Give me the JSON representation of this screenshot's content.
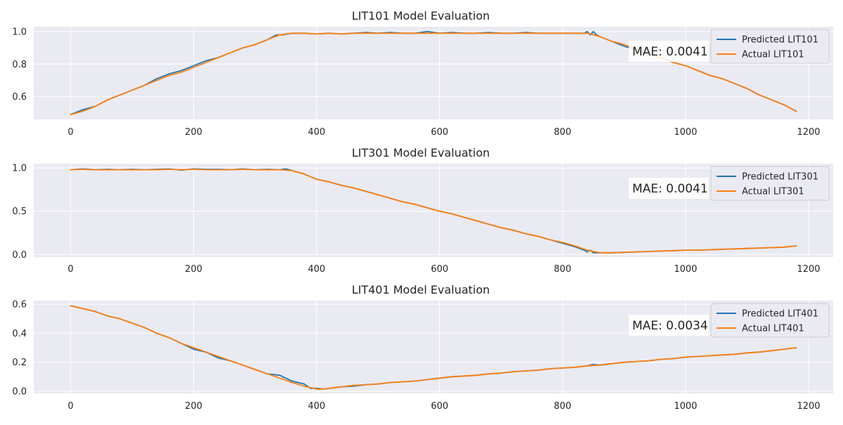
{
  "colors": {
    "panel_bg": "#EAEAF2",
    "grid": "#FFFFFF",
    "predicted": "#1F77B4",
    "actual": "#FF7F0E",
    "box_bg": "#FFFFFF"
  },
  "chart_data": [
    {
      "type": "line",
      "title": "LIT101 Model Evaluation",
      "xlabel": "",
      "ylabel": "",
      "xlim": [
        -60,
        1240
      ],
      "ylim": [
        0.46,
        1.03
      ],
      "xticks": [
        0,
        200,
        400,
        600,
        800,
        1000,
        1200
      ],
      "yticks": [
        0.6,
        0.8,
        1.0
      ],
      "grid": true,
      "legend_position": "top-right",
      "annotation": "MAE: 0.0041",
      "series": [
        {
          "name": "Predicted LIT101",
          "x": [
            0,
            20,
            40,
            60,
            80,
            100,
            120,
            140,
            160,
            180,
            200,
            220,
            240,
            260,
            280,
            300,
            320,
            335,
            345,
            360,
            380,
            400,
            420,
            440,
            460,
            480,
            500,
            520,
            540,
            560,
            580,
            600,
            620,
            640,
            660,
            680,
            700,
            720,
            740,
            760,
            780,
            800,
            820,
            835,
            840,
            845,
            850,
            855,
            860,
            880,
            900,
            920,
            940,
            960,
            980,
            1000,
            1020,
            1040,
            1060,
            1080,
            1100,
            1120,
            1140,
            1160,
            1180
          ],
          "y": [
            0.49,
            0.52,
            0.54,
            0.58,
            0.61,
            0.64,
            0.67,
            0.71,
            0.74,
            0.76,
            0.79,
            0.82,
            0.84,
            0.87,
            0.9,
            0.92,
            0.95,
            0.98,
            0.98,
            0.99,
            0.99,
            0.985,
            0.99,
            0.985,
            0.99,
            0.995,
            0.99,
            0.995,
            0.99,
            0.99,
            1.0,
            0.99,
            0.995,
            0.99,
            0.99,
            0.995,
            0.99,
            0.99,
            0.995,
            0.99,
            0.99,
            0.99,
            0.99,
            0.99,
            1.0,
            0.98,
            1.0,
            0.98,
            0.97,
            0.94,
            0.91,
            0.89,
            0.86,
            0.84,
            0.81,
            0.79,
            0.76,
            0.73,
            0.71,
            0.68,
            0.65,
            0.61,
            0.58,
            0.55,
            0.51
          ]
        },
        {
          "name": "Actual LIT101",
          "x": [
            0,
            20,
            40,
            60,
            80,
            100,
            120,
            140,
            160,
            180,
            200,
            220,
            240,
            260,
            280,
            300,
            320,
            340,
            360,
            380,
            400,
            420,
            440,
            460,
            480,
            500,
            520,
            540,
            560,
            580,
            600,
            620,
            640,
            660,
            680,
            700,
            720,
            740,
            760,
            780,
            800,
            820,
            840,
            860,
            880,
            900,
            920,
            940,
            960,
            980,
            1000,
            1020,
            1040,
            1060,
            1080,
            1100,
            1120,
            1140,
            1160,
            1180
          ],
          "y": [
            0.49,
            0.51,
            0.54,
            0.58,
            0.61,
            0.64,
            0.67,
            0.7,
            0.73,
            0.75,
            0.78,
            0.81,
            0.84,
            0.87,
            0.9,
            0.92,
            0.95,
            0.98,
            0.99,
            0.99,
            0.985,
            0.99,
            0.985,
            0.99,
            0.99,
            0.99,
            0.99,
            0.99,
            0.99,
            0.99,
            0.99,
            0.99,
            0.99,
            0.99,
            0.99,
            0.99,
            0.99,
            0.99,
            0.99,
            0.99,
            0.99,
            0.99,
            0.99,
            0.97,
            0.94,
            0.92,
            0.89,
            0.87,
            0.84,
            0.81,
            0.79,
            0.76,
            0.73,
            0.71,
            0.68,
            0.65,
            0.61,
            0.58,
            0.55,
            0.51
          ]
        }
      ]
    },
    {
      "type": "line",
      "title": "LIT301 Model Evaluation",
      "xlabel": "",
      "ylabel": "",
      "xlim": [
        -60,
        1240
      ],
      "ylim": [
        -0.03,
        1.05
      ],
      "xticks": [
        0,
        200,
        400,
        600,
        800,
        1000,
        1200
      ],
      "yticks": [
        0.0,
        0.5,
        1.0
      ],
      "grid": true,
      "legend_position": "top-right",
      "annotation": "MAE: 0.0041",
      "series": [
        {
          "name": "Predicted LIT301",
          "x": [
            0,
            20,
            40,
            60,
            80,
            100,
            120,
            140,
            160,
            180,
            200,
            220,
            240,
            260,
            280,
            300,
            320,
            340,
            350,
            360,
            380,
            400,
            420,
            440,
            460,
            480,
            500,
            520,
            540,
            560,
            580,
            600,
            620,
            640,
            660,
            680,
            700,
            720,
            740,
            760,
            780,
            800,
            820,
            835,
            840,
            845,
            850,
            860,
            880,
            900,
            920,
            940,
            960,
            980,
            1000,
            1020,
            1040,
            1060,
            1080,
            1100,
            1120,
            1140,
            1160,
            1180
          ],
          "y": [
            0.98,
            0.99,
            0.98,
            0.985,
            0.98,
            0.985,
            0.98,
            0.985,
            0.99,
            0.975,
            0.99,
            0.985,
            0.985,
            0.98,
            0.99,
            0.98,
            0.985,
            0.98,
            0.99,
            0.97,
            0.93,
            0.87,
            0.84,
            0.8,
            0.77,
            0.73,
            0.69,
            0.65,
            0.61,
            0.58,
            0.54,
            0.5,
            0.47,
            0.43,
            0.39,
            0.35,
            0.31,
            0.28,
            0.24,
            0.21,
            0.17,
            0.13,
            0.09,
            0.05,
            0.03,
            0.05,
            0.02,
            0.02,
            0.02,
            0.025,
            0.03,
            0.035,
            0.04,
            0.045,
            0.05,
            0.05,
            0.055,
            0.06,
            0.065,
            0.07,
            0.075,
            0.08,
            0.085,
            0.1
          ]
        },
        {
          "name": "Actual LIT301",
          "x": [
            0,
            20,
            40,
            60,
            80,
            100,
            120,
            140,
            160,
            180,
            200,
            220,
            240,
            260,
            280,
            300,
            320,
            340,
            360,
            380,
            400,
            420,
            440,
            460,
            480,
            500,
            520,
            540,
            560,
            580,
            600,
            620,
            640,
            660,
            680,
            700,
            720,
            740,
            760,
            780,
            800,
            820,
            840,
            860,
            880,
            900,
            920,
            940,
            960,
            980,
            1000,
            1020,
            1040,
            1060,
            1080,
            1100,
            1120,
            1140,
            1160,
            1180
          ],
          "y": [
            0.98,
            0.985,
            0.98,
            0.98,
            0.98,
            0.98,
            0.98,
            0.98,
            0.985,
            0.98,
            0.985,
            0.98,
            0.98,
            0.98,
            0.985,
            0.98,
            0.98,
            0.98,
            0.97,
            0.93,
            0.87,
            0.84,
            0.8,
            0.77,
            0.73,
            0.69,
            0.65,
            0.61,
            0.58,
            0.54,
            0.5,
            0.47,
            0.43,
            0.39,
            0.35,
            0.31,
            0.28,
            0.24,
            0.21,
            0.17,
            0.14,
            0.1,
            0.05,
            0.02,
            0.02,
            0.025,
            0.03,
            0.035,
            0.04,
            0.045,
            0.05,
            0.05,
            0.055,
            0.06,
            0.065,
            0.07,
            0.075,
            0.08,
            0.085,
            0.1
          ]
        }
      ]
    },
    {
      "type": "line",
      "title": "LIT401 Model Evaluation",
      "xlabel": "",
      "ylabel": "",
      "xlim": [
        -60,
        1240
      ],
      "ylim": [
        -0.015,
        0.625
      ],
      "xticks": [
        0,
        200,
        400,
        600,
        800,
        1000,
        1200
      ],
      "yticks": [
        0.0,
        0.2,
        0.4,
        0.6
      ],
      "grid": true,
      "legend_position": "top-right",
      "annotation": "MAE: 0.0034",
      "series": [
        {
          "name": "Predicted LIT401",
          "x": [
            0,
            20,
            40,
            60,
            80,
            100,
            120,
            140,
            160,
            180,
            200,
            220,
            240,
            260,
            280,
            300,
            320,
            340,
            360,
            380,
            390,
            400,
            410,
            420,
            440,
            460,
            480,
            500,
            520,
            540,
            560,
            580,
            600,
            620,
            640,
            660,
            680,
            700,
            720,
            740,
            760,
            780,
            800,
            820,
            840,
            850,
            860,
            880,
            900,
            920,
            940,
            960,
            980,
            1000,
            1020,
            1040,
            1060,
            1080,
            1100,
            1120,
            1140,
            1160,
            1180
          ],
          "y": [
            0.59,
            0.57,
            0.55,
            0.52,
            0.5,
            0.47,
            0.44,
            0.4,
            0.37,
            0.33,
            0.29,
            0.27,
            0.23,
            0.21,
            0.18,
            0.15,
            0.12,
            0.11,
            0.07,
            0.05,
            0.02,
            0.02,
            0.015,
            0.02,
            0.03,
            0.035,
            0.045,
            0.05,
            0.06,
            0.065,
            0.07,
            0.08,
            0.09,
            0.1,
            0.105,
            0.11,
            0.12,
            0.125,
            0.135,
            0.14,
            0.145,
            0.155,
            0.16,
            0.165,
            0.175,
            0.185,
            0.18,
            0.19,
            0.2,
            0.205,
            0.21,
            0.22,
            0.225,
            0.235,
            0.24,
            0.245,
            0.25,
            0.255,
            0.265,
            0.27,
            0.28,
            0.29,
            0.3
          ]
        },
        {
          "name": "Actual LIT401",
          "x": [
            0,
            20,
            40,
            60,
            80,
            100,
            120,
            140,
            160,
            180,
            200,
            220,
            240,
            260,
            280,
            300,
            320,
            340,
            360,
            380,
            400,
            410,
            420,
            440,
            460,
            480,
            500,
            520,
            540,
            560,
            580,
            600,
            620,
            640,
            660,
            680,
            700,
            720,
            740,
            760,
            780,
            800,
            820,
            840,
            860,
            880,
            900,
            920,
            940,
            960,
            980,
            1000,
            1020,
            1040,
            1060,
            1080,
            1100,
            1120,
            1140,
            1160,
            1180
          ],
          "y": [
            0.59,
            0.57,
            0.55,
            0.52,
            0.5,
            0.47,
            0.44,
            0.4,
            0.37,
            0.33,
            0.3,
            0.27,
            0.24,
            0.21,
            0.18,
            0.15,
            0.12,
            0.09,
            0.06,
            0.035,
            0.015,
            0.015,
            0.02,
            0.03,
            0.04,
            0.045,
            0.05,
            0.06,
            0.065,
            0.07,
            0.08,
            0.09,
            0.1,
            0.105,
            0.11,
            0.12,
            0.125,
            0.135,
            0.14,
            0.145,
            0.155,
            0.16,
            0.165,
            0.175,
            0.18,
            0.19,
            0.2,
            0.205,
            0.21,
            0.22,
            0.225,
            0.235,
            0.24,
            0.245,
            0.25,
            0.255,
            0.265,
            0.27,
            0.28,
            0.29,
            0.3
          ]
        }
      ]
    }
  ]
}
